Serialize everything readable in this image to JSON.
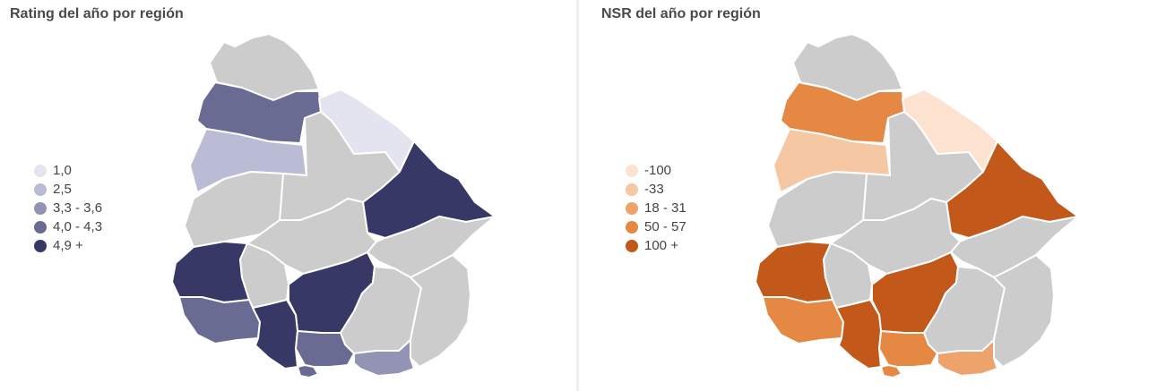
{
  "panels": [
    {
      "title": "Rating del año por región",
      "legend": [
        {
          "label": "1,0",
          "color": "#e4e4f0"
        },
        {
          "label": "2,5",
          "color": "#babbd4"
        },
        {
          "label": "3,3 - 3,6",
          "color": "#9293b5"
        },
        {
          "label": "4,0 - 4,3",
          "color": "#6a6b93"
        },
        {
          "label": "4,9 +",
          "color": "#373865"
        }
      ],
      "no_data_color": "#cccccc",
      "regions": {
        "artigas": "none",
        "salto": "4,0 - 4,3",
        "rivera": "1,0",
        "paysandu": "2,5",
        "tacuarembo": "none",
        "cerro_largo": "4,9 +",
        "rio_negro": "none",
        "durazno": "none",
        "treinta_y_tres": "none",
        "soriano": "4,9 +",
        "flores": "none",
        "florida": "4,9 +",
        "lavalleja": "none",
        "rocha": "none",
        "colonia": "4,0 - 4,3",
        "san_jose": "4,9 +",
        "canelones": "4,0 - 4,3",
        "montevideo": "4,0 - 4,3",
        "maldonado": "3,3 - 3,6"
      }
    },
    {
      "title": "NSR del año por región",
      "legend": [
        {
          "label": "-100",
          "color": "#fde3cf"
        },
        {
          "label": "-33",
          "color": "#f5c7a2"
        },
        {
          "label": "18 - 31",
          "color": "#eea36d"
        },
        {
          "label": "50 - 57",
          "color": "#e48844"
        },
        {
          "label": "100 +",
          "color": "#c2581a"
        }
      ],
      "no_data_color": "#cccccc",
      "regions": {
        "artigas": "none",
        "salto": "50 - 57",
        "rivera": "-100",
        "paysandu": "-33",
        "tacuarembo": "none",
        "cerro_largo": "100 +",
        "rio_negro": "none",
        "durazno": "none",
        "treinta_y_tres": "none",
        "soriano": "100 +",
        "flores": "none",
        "florida": "100 +",
        "lavalleja": "none",
        "rocha": "none",
        "colonia": "50 - 57",
        "san_jose": "100 +",
        "canelones": "50 - 57",
        "montevideo": "50 - 57",
        "maldonado": "18 - 31"
      }
    }
  ]
}
